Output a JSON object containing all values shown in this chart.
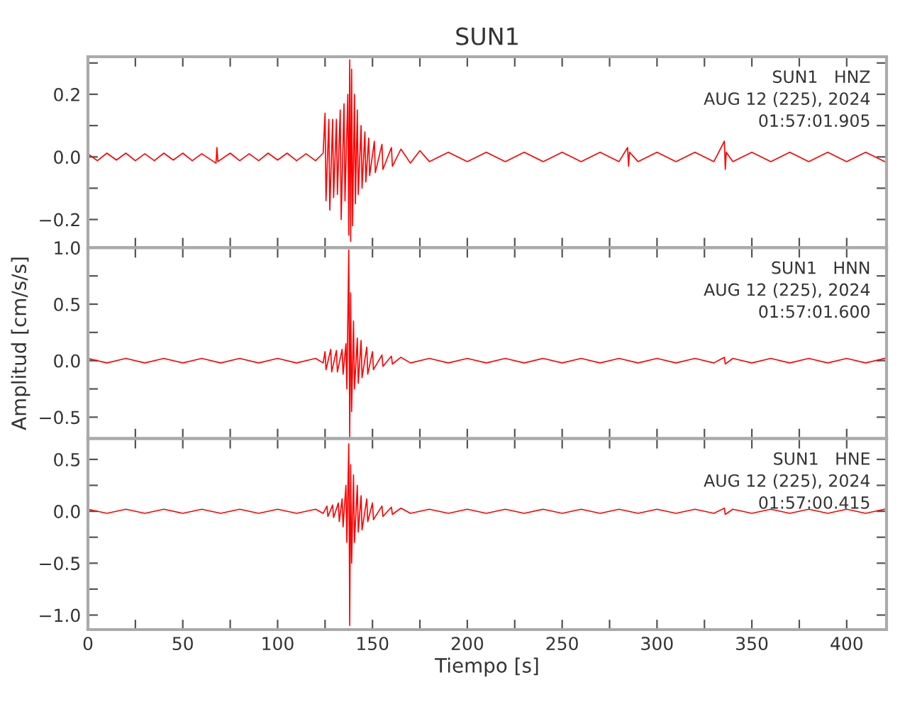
{
  "chart_data": [
    {
      "type": "line",
      "title": "SUN1",
      "annotations": [
        "SUN1   HNZ",
        "AUG 12 (225), 2024",
        "01:57:01.905"
      ],
      "series": [
        {
          "color": "#ff0000",
          "x": [
            0,
            5,
            10,
            15,
            20,
            25,
            30,
            35,
            40,
            45,
            50,
            55,
            60,
            67.5,
            68,
            68.5,
            75,
            80,
            85,
            90,
            95,
            100,
            105,
            110,
            115,
            120,
            124,
            125,
            125.5,
            127,
            127.5,
            129,
            129.5,
            131,
            131.5,
            133,
            133.5,
            135,
            135.5,
            137,
            137.5,
            138,
            138.5,
            139,
            139.5,
            140.5,
            141,
            142,
            142.5,
            144,
            144.5,
            146,
            146.5,
            148,
            148.5,
            151,
            151.5,
            155,
            155.5,
            160,
            160.5,
            165,
            170,
            175,
            180,
            190,
            200,
            210,
            220,
            230,
            240,
            250,
            260,
            270,
            280,
            284.5,
            285,
            285.5,
            290,
            300,
            310,
            320,
            330,
            335.5,
            336,
            336.5,
            340,
            350,
            360,
            370,
            380,
            390,
            400,
            410,
            420
          ],
          "values": [
            0.01,
            -0.012,
            0.012,
            -0.01,
            0.012,
            -0.012,
            0.01,
            -0.012,
            0.012,
            -0.01,
            0.012,
            -0.012,
            0.01,
            -0.02,
            0.03,
            -0.015,
            0.012,
            -0.012,
            0.01,
            -0.012,
            0.012,
            -0.01,
            0.012,
            -0.012,
            0.01,
            -0.012,
            0.012,
            0.14,
            -0.14,
            0.12,
            -0.17,
            0.12,
            -0.13,
            0.12,
            -0.12,
            0.15,
            -0.2,
            0.17,
            -0.14,
            0.2,
            -0.25,
            0.31,
            -0.27,
            0.28,
            -0.22,
            0.2,
            -0.15,
            0.15,
            -0.12,
            0.1,
            -0.1,
            0.08,
            -0.08,
            0.06,
            -0.06,
            0.05,
            -0.05,
            0.04,
            -0.04,
            0.03,
            -0.03,
            0.025,
            -0.02,
            0.02,
            -0.015,
            0.015,
            -0.015,
            0.015,
            -0.015,
            0.015,
            -0.015,
            0.015,
            -0.015,
            0.015,
            -0.015,
            0.03,
            -0.03,
            0.015,
            -0.015,
            0.015,
            -0.015,
            0.015,
            -0.015,
            0.05,
            -0.04,
            0.015,
            -0.015,
            0.015,
            -0.015,
            0.015,
            -0.015,
            0.015,
            -0.015,
            0.015,
            -0.015
          ]
        }
      ],
      "xlim": [
        0,
        421
      ],
      "ylim": [
        -0.29,
        0.32
      ],
      "xticks": [
        {
          "value": 0,
          "label": null
        },
        {
          "value": 25,
          "label": null
        },
        {
          "value": 50,
          "label": null
        },
        {
          "value": 75,
          "label": null
        },
        {
          "value": 100,
          "label": null
        },
        {
          "value": 125,
          "label": null
        },
        {
          "value": 150,
          "label": null
        },
        {
          "value": 175,
          "label": null
        },
        {
          "value": 200,
          "label": null
        },
        {
          "value": 225,
          "label": null
        },
        {
          "value": 250,
          "label": null
        },
        {
          "value": 275,
          "label": null
        },
        {
          "value": 300,
          "label": null
        },
        {
          "value": 325,
          "label": null
        },
        {
          "value": 350,
          "label": null
        },
        {
          "value": 375,
          "label": null
        },
        {
          "value": 400,
          "label": null
        }
      ],
      "yticks": [
        {
          "value": -0.2,
          "label": "−0.2"
        },
        {
          "value": -0.1,
          "label": null
        },
        {
          "value": 0.0,
          "label": "0.0"
        },
        {
          "value": 0.1,
          "label": null
        },
        {
          "value": 0.2,
          "label": "0.2"
        },
        {
          "value": 0.3,
          "label": null
        }
      ],
      "tick_labels": "y"
    },
    {
      "type": "line",
      "ylabel": "Amplitud [cm/s/s]",
      "annotations": [
        "SUN1   HNN",
        "AUG 12 (225), 2024",
        "01:57:01.600"
      ],
      "series": [
        {
          "color": "#ff0000",
          "x": [
            0,
            10,
            20,
            30,
            40,
            50,
            60,
            70,
            80,
            90,
            100,
            110,
            120,
            124,
            125,
            125.5,
            128,
            128.5,
            131,
            131.5,
            134,
            134.5,
            136,
            136.5,
            137.5,
            138,
            138.5,
            139,
            140,
            140.5,
            142,
            142.5,
            144,
            144.5,
            147,
            147.5,
            150,
            150.5,
            155,
            155.5,
            160,
            160.5,
            165,
            170,
            180,
            190,
            200,
            210,
            220,
            230,
            240,
            250,
            260,
            270,
            280,
            290,
            300,
            310,
            320,
            330,
            335.5,
            336,
            340,
            350,
            360,
            370,
            380,
            390,
            400,
            410,
            420
          ],
          "values": [
            0.02,
            -0.02,
            0.02,
            -0.02,
            0.02,
            -0.02,
            0.02,
            -0.02,
            0.02,
            -0.02,
            0.02,
            -0.02,
            0.02,
            -0.02,
            0.08,
            -0.08,
            0.1,
            -0.1,
            0.09,
            -0.1,
            0.1,
            -0.12,
            0.15,
            -0.25,
            0.98,
            -0.68,
            0.6,
            -0.45,
            0.35,
            -0.25,
            0.2,
            -0.2,
            0.18,
            -0.15,
            0.12,
            -0.12,
            0.08,
            -0.08,
            0.05,
            -0.05,
            0.04,
            -0.03,
            0.03,
            -0.02,
            0.02,
            -0.02,
            0.02,
            -0.02,
            0.02,
            -0.02,
            0.02,
            -0.02,
            0.02,
            -0.02,
            0.02,
            -0.02,
            0.02,
            -0.02,
            0.02,
            -0.02,
            0.03,
            -0.03,
            0.02,
            -0.02,
            0.02,
            -0.02,
            0.02,
            -0.02,
            0.02,
            -0.02,
            0.02
          ]
        }
      ],
      "xlim": [
        0,
        421
      ],
      "ylim": [
        -0.69,
        1.0
      ],
      "xticks": [
        {
          "value": 0,
          "label": null
        },
        {
          "value": 25,
          "label": null
        },
        {
          "value": 50,
          "label": null
        },
        {
          "value": 75,
          "label": null
        },
        {
          "value": 100,
          "label": null
        },
        {
          "value": 125,
          "label": null
        },
        {
          "value": 150,
          "label": null
        },
        {
          "value": 175,
          "label": null
        },
        {
          "value": 200,
          "label": null
        },
        {
          "value": 225,
          "label": null
        },
        {
          "value": 250,
          "label": null
        },
        {
          "value": 275,
          "label": null
        },
        {
          "value": 300,
          "label": null
        },
        {
          "value": 325,
          "label": null
        },
        {
          "value": 350,
          "label": null
        },
        {
          "value": 375,
          "label": null
        },
        {
          "value": 400,
          "label": null
        }
      ],
      "yticks": [
        {
          "value": -0.5,
          "label": "−0.5"
        },
        {
          "value": -0.25,
          "label": null
        },
        {
          "value": 0.0,
          "label": "0.0"
        },
        {
          "value": 0.25,
          "label": null
        },
        {
          "value": 0.5,
          "label": "0.5"
        },
        {
          "value": 0.75,
          "label": null
        },
        {
          "value": 1.0,
          "label": "1.0"
        }
      ],
      "tick_labels": "y"
    },
    {
      "type": "line",
      "xlabel": "Tiempo [s]",
      "annotations": [
        "SUN1   HNE",
        "AUG 12 (225), 2024",
        "01:57:00.415"
      ],
      "series": [
        {
          "color": "#ff0000",
          "x": [
            0,
            10,
            20,
            30,
            40,
            50,
            60,
            70,
            80,
            90,
            100,
            110,
            120,
            124,
            126,
            126.5,
            129,
            129.5,
            132,
            132.5,
            134,
            134.5,
            136,
            136.5,
            137.5,
            138,
            138.5,
            139,
            140,
            140.5,
            142,
            142.5,
            144,
            144.5,
            147,
            147.5,
            150,
            150.5,
            155,
            155.5,
            160,
            160.5,
            165,
            170,
            180,
            190,
            200,
            210,
            220,
            230,
            240,
            250,
            260,
            270,
            280,
            290,
            300,
            310,
            320,
            330,
            335.5,
            336,
            340,
            350,
            360,
            370,
            380,
            390,
            400,
            410,
            420
          ],
          "values": [
            0.02,
            -0.02,
            0.02,
            -0.02,
            0.02,
            -0.02,
            0.02,
            -0.02,
            0.02,
            -0.02,
            0.02,
            -0.02,
            0.02,
            -0.02,
            0.05,
            -0.05,
            0.06,
            -0.06,
            0.08,
            -0.1,
            0.12,
            -0.15,
            0.25,
            -0.3,
            0.65,
            -1.1,
            0.45,
            -0.5,
            0.35,
            -0.3,
            0.25,
            -0.2,
            0.15,
            -0.18,
            0.12,
            -0.1,
            0.08,
            -0.08,
            0.05,
            -0.05,
            0.04,
            -0.03,
            0.03,
            -0.02,
            0.02,
            -0.02,
            0.02,
            -0.02,
            0.02,
            -0.02,
            0.02,
            -0.02,
            0.02,
            -0.02,
            0.02,
            -0.02,
            0.02,
            -0.02,
            0.02,
            -0.02,
            0.03,
            -0.03,
            0.02,
            -0.02,
            0.02,
            -0.02,
            0.02,
            -0.02,
            0.02,
            -0.02,
            0.02
          ]
        }
      ],
      "xlim": [
        0,
        421
      ],
      "ylim": [
        -1.14,
        0.7
      ],
      "xticks": [
        {
          "value": 0,
          "label": "0"
        },
        {
          "value": 25,
          "label": null
        },
        {
          "value": 50,
          "label": "50"
        },
        {
          "value": 75,
          "label": null
        },
        {
          "value": 100,
          "label": "100"
        },
        {
          "value": 125,
          "label": null
        },
        {
          "value": 150,
          "label": "150"
        },
        {
          "value": 175,
          "label": null
        },
        {
          "value": 200,
          "label": "200"
        },
        {
          "value": 225,
          "label": null
        },
        {
          "value": 250,
          "label": "250"
        },
        {
          "value": 275,
          "label": null
        },
        {
          "value": 300,
          "label": "300"
        },
        {
          "value": 325,
          "label": null
        },
        {
          "value": 350,
          "label": "350"
        },
        {
          "value": 375,
          "label": null
        },
        {
          "value": 400,
          "label": "400"
        }
      ],
      "yticks": [
        {
          "value": -1.0,
          "label": "−1.0"
        },
        {
          "value": -0.75,
          "label": null
        },
        {
          "value": -0.5,
          "label": "−0.5"
        },
        {
          "value": -0.25,
          "label": null
        },
        {
          "value": 0.0,
          "label": "0.0"
        },
        {
          "value": 0.25,
          "label": null
        },
        {
          "value": 0.5,
          "label": "0.5"
        }
      ]
    }
  ]
}
